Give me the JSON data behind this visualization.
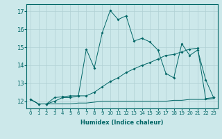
{
  "title": "",
  "xlabel": "Humidex (Indice chaleur)",
  "background_color": "#cce8ea",
  "grid_color": "#b0d0d4",
  "line_color": "#006666",
  "xlim": [
    -0.5,
    23.5
  ],
  "ylim": [
    11.6,
    17.4
  ],
  "xticks": [
    0,
    1,
    2,
    3,
    4,
    5,
    6,
    7,
    8,
    9,
    10,
    11,
    12,
    13,
    14,
    15,
    16,
    17,
    18,
    19,
    20,
    21,
    22,
    23
  ],
  "yticks": [
    12,
    13,
    14,
    15,
    16,
    17
  ],
  "line1_x": [
    0,
    1,
    2,
    3,
    4,
    5,
    6,
    7,
    8,
    9,
    10,
    11,
    12,
    13,
    14,
    15,
    16,
    17,
    18,
    19,
    20,
    21,
    22,
    23
  ],
  "line1_y": [
    12.1,
    11.85,
    11.85,
    11.85,
    11.85,
    11.85,
    11.9,
    11.9,
    11.95,
    12.0,
    12.0,
    12.0,
    12.0,
    12.0,
    12.0,
    12.0,
    12.0,
    12.0,
    12.05,
    12.05,
    12.1,
    12.1,
    12.1,
    12.15
  ],
  "line2_x": [
    0,
    1,
    2,
    3,
    4,
    5,
    6,
    7,
    8,
    9,
    10,
    11,
    12,
    13,
    14,
    15,
    16,
    17,
    18,
    19,
    20,
    21,
    22,
    23
  ],
  "line2_y": [
    12.1,
    11.85,
    11.85,
    12.0,
    12.2,
    12.2,
    12.3,
    12.3,
    12.5,
    12.8,
    13.1,
    13.3,
    13.6,
    13.8,
    14.0,
    14.15,
    14.35,
    14.55,
    14.6,
    14.75,
    14.9,
    14.95,
    12.15,
    12.2
  ],
  "line3_x": [
    0,
    1,
    2,
    3,
    4,
    5,
    6,
    7,
    8,
    9,
    10,
    11,
    12,
    13,
    14,
    15,
    16,
    17,
    18,
    19,
    20,
    21,
    22,
    23
  ],
  "line3_y": [
    12.1,
    11.85,
    11.85,
    12.2,
    12.25,
    12.3,
    12.3,
    14.9,
    13.85,
    15.8,
    17.05,
    16.55,
    16.75,
    15.35,
    15.5,
    15.3,
    14.85,
    13.55,
    13.3,
    15.2,
    14.55,
    14.85,
    13.2,
    12.2
  ]
}
